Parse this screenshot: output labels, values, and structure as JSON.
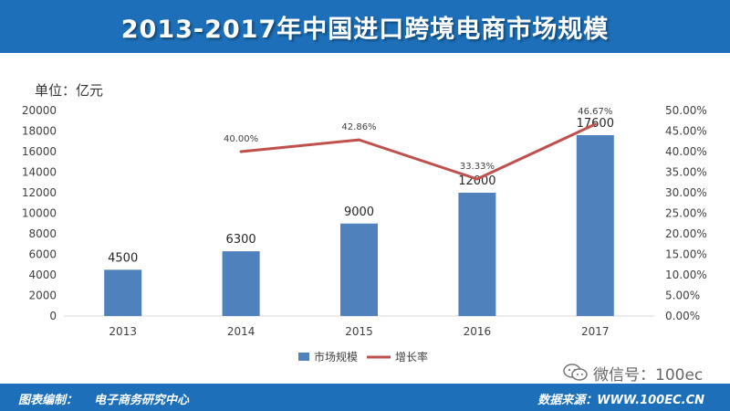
{
  "title": "2013-2017年中国进口跨境电商市场规模",
  "unit_label": "单位：亿元",
  "footer": {
    "credit_label": "图表编制：",
    "credit_value": "电子商务研究中心",
    "source_label": "数据来源：",
    "source_value": "WWW.100EC.CN"
  },
  "wechat": {
    "text": "微信号：100ec",
    "icon": "wechat-icon"
  },
  "colors": {
    "bar": "#4f81bd",
    "line": "#c0504d",
    "banner": "#1c6fb8"
  },
  "chart_data": {
    "type": "bar",
    "categories": [
      "2013",
      "2014",
      "2015",
      "2016",
      "2017"
    ],
    "series": [
      {
        "name": "市场规模",
        "type": "bar",
        "axis": "left",
        "values": [
          4500,
          6300,
          9000,
          12000,
          17600
        ],
        "labels": [
          "4500",
          "6300",
          "9000",
          "12000",
          "17600"
        ]
      },
      {
        "name": "增长率",
        "type": "line",
        "axis": "right",
        "values": [
          null,
          40.0,
          42.86,
          33.33,
          46.67
        ],
        "labels": [
          "",
          "40.00%",
          "42.86%",
          "33.33%",
          "46.67%"
        ]
      }
    ],
    "left_axis": {
      "min": 0,
      "max": 20000,
      "ticks": [
        "0",
        "2000",
        "4000",
        "6000",
        "8000",
        "10000",
        "12000",
        "14000",
        "16000",
        "18000",
        "20000"
      ]
    },
    "right_axis": {
      "min": 0,
      "max": 50,
      "ticks": [
        "0.00%",
        "5.00%",
        "10.00%",
        "15.00%",
        "20.00%",
        "25.00%",
        "30.00%",
        "35.00%",
        "40.00%",
        "45.00%",
        "50.00%"
      ]
    },
    "legend_position": "bottom",
    "grid": false
  }
}
